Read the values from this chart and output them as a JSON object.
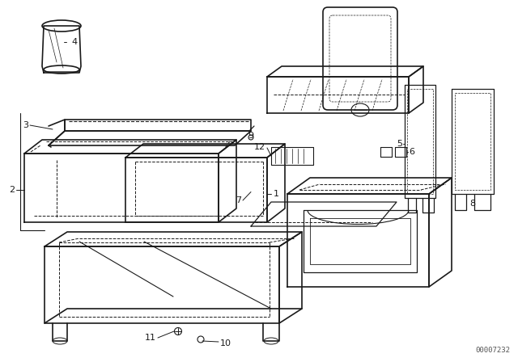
{
  "bg_color": "#ffffff",
  "line_color": "#1a1a1a",
  "doc_number": "00007232",
  "figsize": [
    6.4,
    4.48
  ],
  "dpi": 100,
  "lw": 0.9,
  "lw_thick": 1.2,
  "lw_thin": 0.6
}
